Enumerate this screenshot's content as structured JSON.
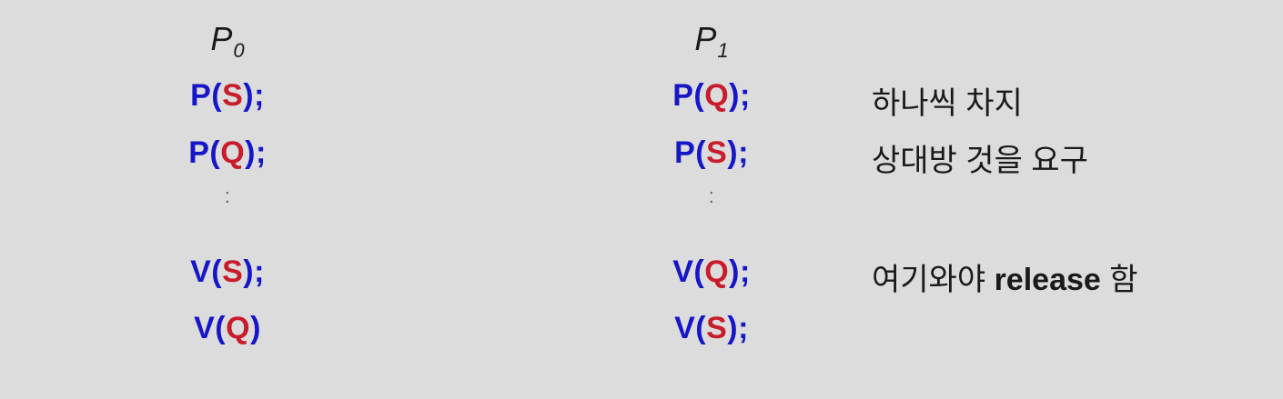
{
  "p0": {
    "header_letter": "P",
    "header_sub": "0",
    "lines": [
      {
        "op": "P(",
        "sem": "S",
        "rest": ");"
      },
      {
        "op": "P(",
        "sem": "Q",
        "rest": ");"
      },
      {
        "op": "V(",
        "sem": "S",
        "rest": ");"
      },
      {
        "op": "V(",
        "sem": "Q",
        "rest": ")"
      }
    ],
    "ellipsis": ":"
  },
  "p1": {
    "header_letter": "P",
    "header_sub": "1",
    "lines": [
      {
        "op": "P(",
        "sem": "Q",
        "rest": ");"
      },
      {
        "op": "P(",
        "sem": "S",
        "rest": ");"
      },
      {
        "op": "V(",
        "sem": "Q",
        "rest": ");"
      },
      {
        "op": "V(",
        "sem": "S",
        "rest": ");"
      }
    ],
    "ellipsis": ":"
  },
  "notes": {
    "line1": "하나씩 차지",
    "line2": "상대방 것을 요구",
    "line3_prefix": "여기와야 ",
    "line3_bold": "release",
    "line3_suffix": " 함"
  },
  "colors": {
    "background": "#dcdcdc",
    "operation": "#1616c8",
    "semaphore": "#c81c2c",
    "text": "#1a1a1a"
  }
}
